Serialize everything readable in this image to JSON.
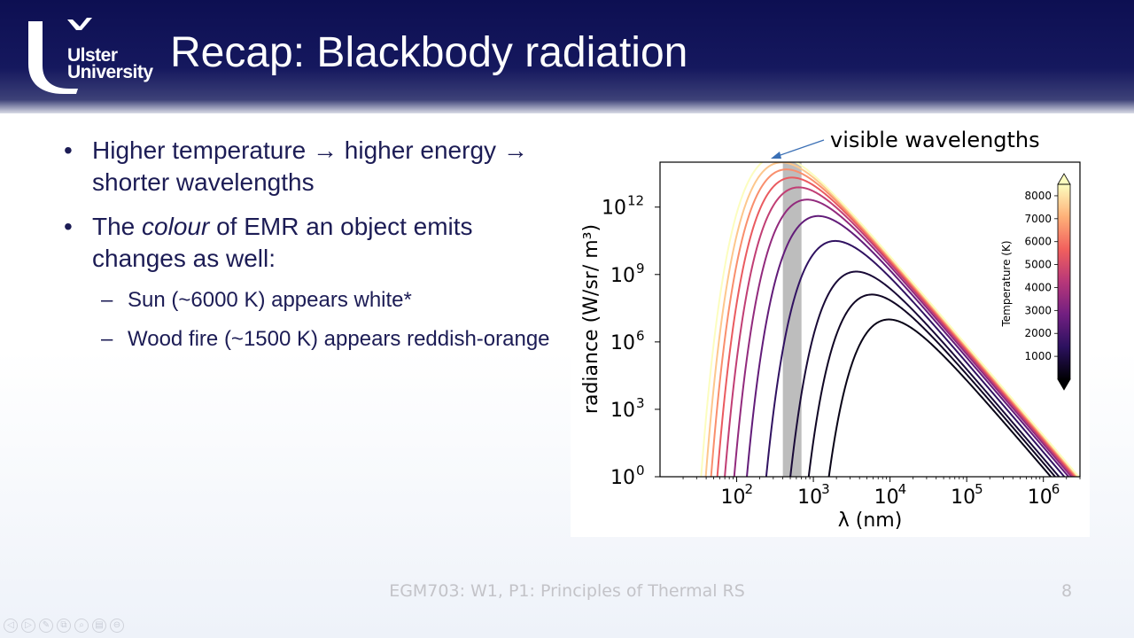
{
  "header": {
    "logo_line1": "Ulster",
    "logo_line2": "University",
    "title": "Recap: Blackbody radiation"
  },
  "bullets": {
    "b1_part1": "Higher temperature",
    "b1_arrow1": "→",
    "b1_part2": "higher energy",
    "b1_arrow2": "→",
    "b1_part3": "shorter wavelengths",
    "b2_prefix": "The ",
    "b2_italic": "colour",
    "b2_suffix": " of EMR an object emits changes as well:",
    "sub1": "Sun (~6000 K) appears white*",
    "sub2": "Wood fire (~1500 K) appears reddish-orange"
  },
  "chart_data": {
    "type": "line",
    "annotation": "visible wavelengths",
    "xlabel": "λ (nm)",
    "ylabel": "radiance (W/sr/ m³)",
    "x_scale": "log",
    "y_scale": "log",
    "xlim": [
      10,
      3000000
    ],
    "ylim": [
      1,
      100000000000000.0
    ],
    "x_tick_exponents": [
      2,
      3,
      4,
      5,
      6
    ],
    "y_tick_exponents": [
      0,
      3,
      6,
      9,
      12
    ],
    "visible_band_nm": [
      400,
      700
    ],
    "temperatures_K": [
      300,
      500,
      800,
      1500,
      2500,
      3500,
      4500,
      5500,
      6500,
      7500,
      8500
    ],
    "colorbar": {
      "label": "Temperature (K)",
      "ticks": [
        1000,
        2000,
        3000,
        4000,
        5000,
        6000,
        7000,
        8000
      ],
      "min": 0,
      "max": 8500,
      "colormap": [
        "#000004",
        "#2c115f",
        "#721f81",
        "#b73779",
        "#f1605d",
        "#feb078",
        "#fcfdbf"
      ]
    }
  },
  "footer": {
    "text": "EGM703: W1, P1: Principles of Thermal RS",
    "page_number": "8"
  },
  "viewer_controls": [
    "◁",
    "▷",
    "✎",
    "⧉",
    "⌕",
    "▤",
    "⊖"
  ]
}
